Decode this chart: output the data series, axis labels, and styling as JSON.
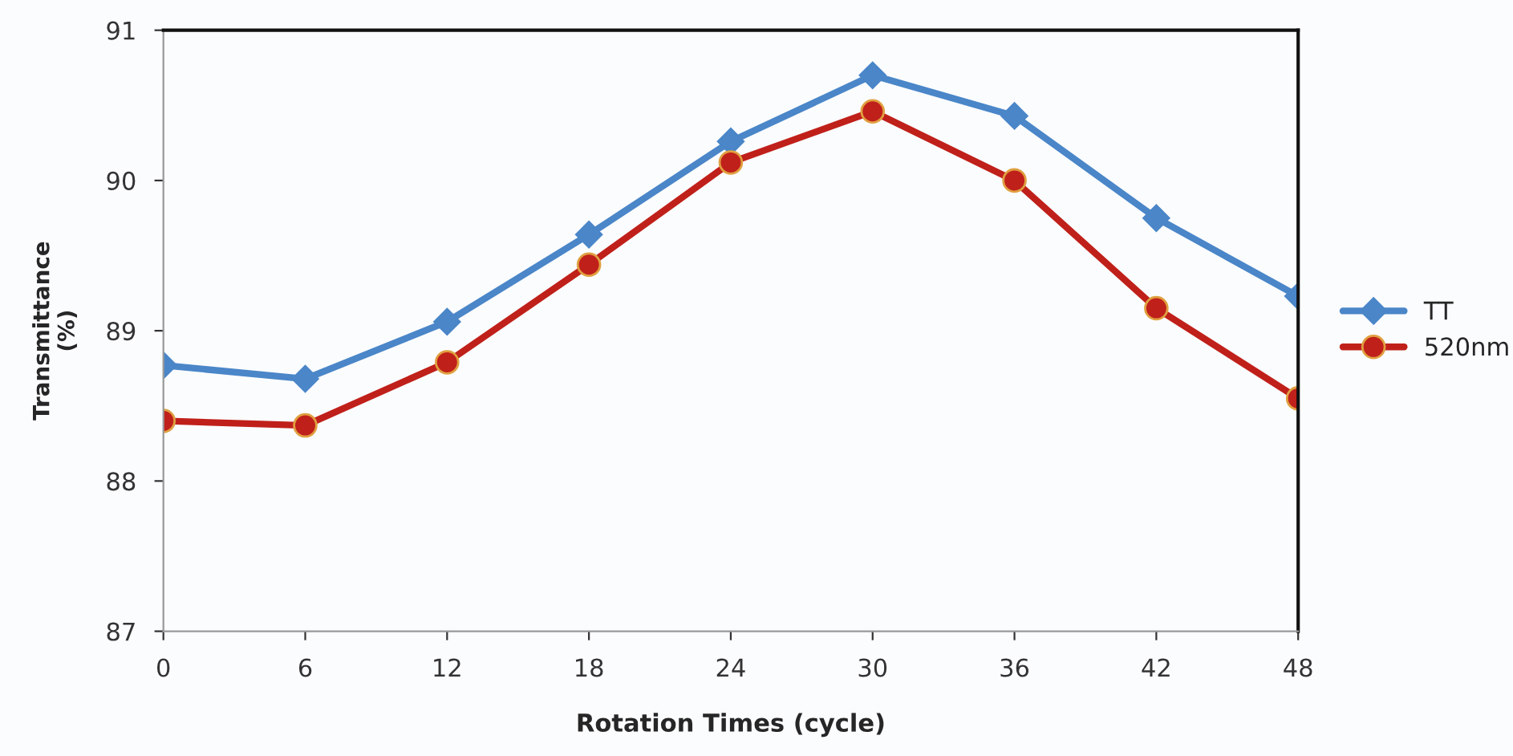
{
  "chart_data": {
    "type": "line",
    "xlabel": "Rotation Times (cycle)",
    "ylabel": "Transmittance\n(%)",
    "x": [
      0,
      6,
      12,
      18,
      24,
      30,
      36,
      42,
      48
    ],
    "xlim": [
      0,
      48
    ],
    "xticks": [
      0,
      6,
      12,
      18,
      24,
      30,
      36,
      42,
      48
    ],
    "ylim": [
      87,
      91
    ],
    "yticks": [
      87,
      88,
      89,
      90,
      91
    ],
    "grid": false,
    "legend": "right",
    "series": [
      {
        "name": "TT",
        "color": "#4a86c8",
        "marker": "diamond",
        "values": [
          88.77,
          88.68,
          89.06,
          89.64,
          90.26,
          90.7,
          90.43,
          89.75,
          89.23
        ]
      },
      {
        "name": "520nm",
        "color": "#c0201a",
        "marker": "circle",
        "values": [
          88.4,
          88.37,
          88.79,
          89.44,
          90.12,
          90.46,
          90.0,
          89.15,
          88.55
        ]
      }
    ]
  }
}
